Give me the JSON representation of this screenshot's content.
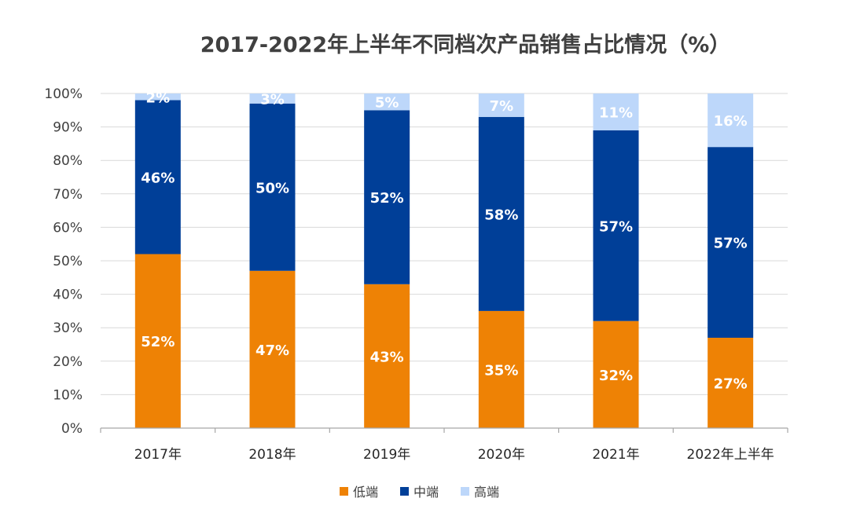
{
  "chart_data": {
    "type": "bar",
    "stacked": true,
    "title": "2017-2022年上半年不同档次产品销售占比情况（%）",
    "categories": [
      "2017年",
      "2018年",
      "2019年",
      "2020年",
      "2021年",
      "2022年上半年"
    ],
    "highlighted_category": "2022年上半年",
    "series": [
      {
        "name": "低端",
        "color": "#EE8205",
        "values": [
          52,
          47,
          43,
          35,
          32,
          27
        ]
      },
      {
        "name": "中端",
        "color": "#003F98",
        "values": [
          46,
          50,
          52,
          58,
          57,
          57
        ]
      },
      {
        "name": "高端",
        "color": "#BDD7FA",
        "values": [
          2,
          3,
          5,
          7,
          11,
          16
        ]
      }
    ],
    "y_ticks": [
      "0%",
      "10%",
      "20%",
      "30%",
      "40%",
      "50%",
      "60%",
      "70%",
      "80%",
      "90%",
      "100%"
    ],
    "ylim": [
      0,
      100
    ],
    "grid": true,
    "legend_position": "bottom",
    "highlight_color": "#EE8205"
  }
}
